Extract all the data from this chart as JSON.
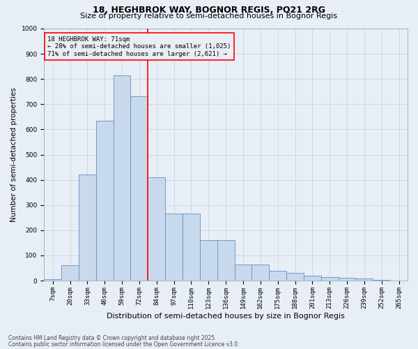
{
  "title1": "18, HEGHBROK WAY, BOGNOR REGIS, PO21 2RG",
  "title2": "Size of property relative to semi-detached houses in Bognor Regis",
  "xlabel": "Distribution of semi-detached houses by size in Bognor Regis",
  "ylabel": "Number of semi-detached properties",
  "categories": [
    "7sqm",
    "20sqm",
    "33sqm",
    "46sqm",
    "59sqm",
    "72sqm",
    "84sqm",
    "97sqm",
    "110sqm",
    "123sqm",
    "136sqm",
    "149sqm",
    "162sqm",
    "175sqm",
    "188sqm",
    "201sqm",
    "213sqm",
    "226sqm",
    "239sqm",
    "252sqm",
    "265sqm"
  ],
  "values": [
    5,
    60,
    420,
    635,
    815,
    730,
    410,
    265,
    265,
    160,
    160,
    65,
    65,
    40,
    30,
    20,
    15,
    10,
    8,
    2,
    1
  ],
  "bar_color": "#c9d9ed",
  "bar_edge_color": "#5b8fc9",
  "property_line_idx": 5,
  "annotation_text_line1": "18 HEGHBROK WAY: 71sqm",
  "annotation_text_line2": "← 28% of semi-detached houses are smaller (1,025)",
  "annotation_text_line3": "71% of semi-detached houses are larger (2,621) →",
  "annotation_box_color": "red",
  "vline_color": "red",
  "ylim": [
    0,
    1000
  ],
  "yticks": [
    0,
    100,
    200,
    300,
    400,
    500,
    600,
    700,
    800,
    900,
    1000
  ],
  "grid_color": "#c8d4e3",
  "bg_color": "#e8eef5",
  "footnote1": "Contains HM Land Registry data © Crown copyright and database right 2025.",
  "footnote2": "Contains public sector information licensed under the Open Government Licence v3.0.",
  "title1_fontsize": 9,
  "title2_fontsize": 8,
  "xlabel_fontsize": 8,
  "ylabel_fontsize": 7.5,
  "tick_fontsize": 6.5,
  "annot_fontsize": 6.5,
  "footnote_fontsize": 5.5
}
